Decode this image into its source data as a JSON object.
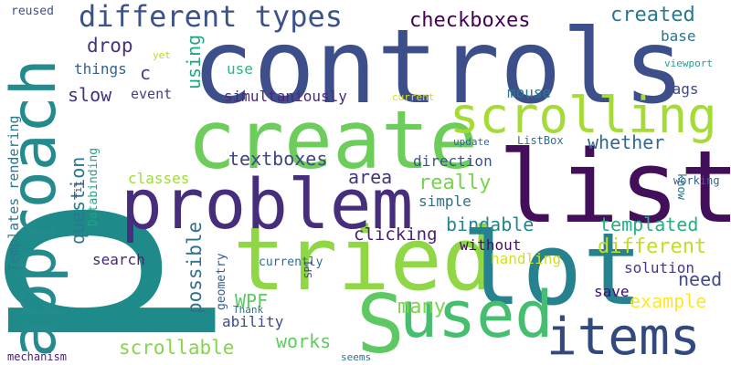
{
  "words": [
    {
      "text": "p",
      "color": "#1f8a8a"
    },
    {
      "text": "controls",
      "color": "#3c4f8a"
    },
    {
      "text": "list",
      "color": "#440f5a"
    },
    {
      "text": "tried",
      "color": "#8fd744"
    },
    {
      "text": "lot",
      "color": "#26828e"
    },
    {
      "text": "create",
      "color": "#6ccd5a"
    },
    {
      "text": "approach",
      "color": "#238a8d"
    },
    {
      "text": "problem",
      "color": "#472e7c"
    },
    {
      "text": "used",
      "color": "#45be70"
    },
    {
      "text": "scrolling",
      "color": "#a5db36"
    },
    {
      "text": "items",
      "color": "#32497f"
    },
    {
      "text": "different types",
      "color": "#3b528b"
    },
    {
      "text": "S",
      "color": "#5ec962"
    },
    {
      "text": "checkboxes",
      "color": "#440154"
    },
    {
      "text": "created",
      "color": "#2a788e"
    },
    {
      "text": "drop",
      "color": "#46327e"
    },
    {
      "text": "using",
      "color": "#21a585"
    },
    {
      "text": "base",
      "color": "#2c728e"
    },
    {
      "text": "slow",
      "color": "#46317e"
    },
    {
      "text": "event",
      "color": "#424086"
    },
    {
      "text": "things",
      "color": "#355f8d"
    },
    {
      "text": "use",
      "color": "#2fb47c"
    },
    {
      "text": "mouse",
      "color": "#2a788e"
    },
    {
      "text": "lags",
      "color": "#3f4889"
    },
    {
      "text": "simultaniously",
      "color": "#482878"
    },
    {
      "text": "whether",
      "color": "#31688e"
    },
    {
      "text": "textboxes",
      "color": "#414487"
    },
    {
      "text": "question",
      "color": "#29798e"
    },
    {
      "text": "area",
      "color": "#46327e"
    },
    {
      "text": "direction",
      "color": "#3a548c"
    },
    {
      "text": "really",
      "color": "#7ad151"
    },
    {
      "text": "classes",
      "color": "#a0da39"
    },
    {
      "text": "simple",
      "color": "#2d708e"
    },
    {
      "text": "bindable",
      "color": "#25848e"
    },
    {
      "text": "templated",
      "color": "#28ae80"
    },
    {
      "text": "possible",
      "color": "#2c728e"
    },
    {
      "text": "different",
      "color": "#bddf26"
    },
    {
      "text": "clicking",
      "color": "#481f70"
    },
    {
      "text": "without",
      "color": "#471164"
    },
    {
      "text": "handling",
      "color": "#d0e11c"
    },
    {
      "text": "need",
      "color": "#3e4a89"
    },
    {
      "text": "search",
      "color": "#482576"
    },
    {
      "text": "solution",
      "color": "#453882"
    },
    {
      "text": "WPF",
      "color": "#5ec962"
    },
    {
      "text": "save",
      "color": "#3b0f70"
    },
    {
      "text": "example",
      "color": "#fde725"
    },
    {
      "text": "many",
      "color": "#7fd34e"
    },
    {
      "text": "ability",
      "color": "#3e4989"
    },
    {
      "text": "works",
      "color": "#60ca60"
    },
    {
      "text": "scrollable",
      "color": "#86d549"
    },
    {
      "text": "geometry",
      "color": "#355f8d"
    },
    {
      "text": "Templates rendering",
      "color": "#2a788e"
    },
    {
      "text": "Databinding",
      "color": "#20a386"
    },
    {
      "text": "reused",
      "color": "#3b528b"
    },
    {
      "text": "yet",
      "color": "#b5de2b"
    },
    {
      "text": "current",
      "color": "#d8e219"
    },
    {
      "text": "viewport",
      "color": "#1fa188"
    },
    {
      "text": "update",
      "color": "#31688e"
    },
    {
      "text": "ListBox",
      "color": "#2e6e8e"
    },
    {
      "text": "know",
      "color": "#2d708e"
    },
    {
      "text": "working",
      "color": "#33638d"
    },
    {
      "text": "fit",
      "color": "#3e4a89"
    },
    {
      "text": "currently",
      "color": "#2e6e8e"
    },
    {
      "text": "SP1",
      "color": "#443a83"
    },
    {
      "text": "Thank",
      "color": "#2d708e"
    },
    {
      "text": "mechanism",
      "color": "#482173"
    },
    {
      "text": "seems",
      "color": "#2e6f8e"
    },
    {
      "text": "c",
      "color": "#424086"
    }
  ]
}
